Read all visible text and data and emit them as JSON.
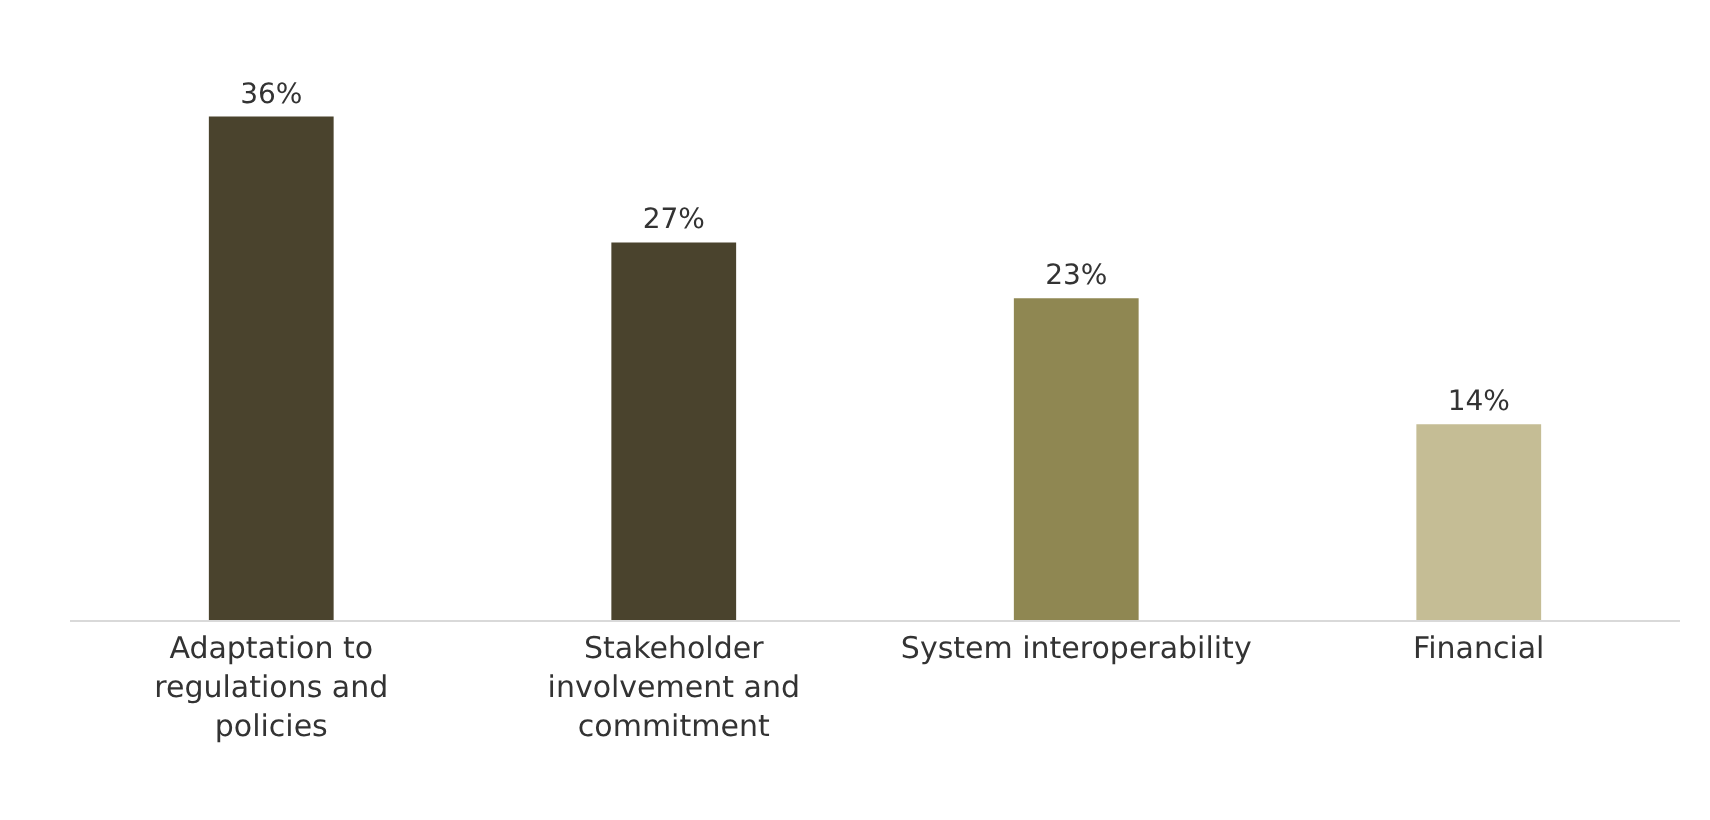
{
  "chart_data": {
    "type": "bar",
    "categories": [
      "Adaptation to regulations and policies",
      "Stakeholder involvement and commitment",
      "System interoperability",
      "Financial"
    ],
    "values": [
      36,
      27,
      23,
      14
    ],
    "colors": [
      "#4a432d",
      "#4a432d",
      "#8f8752",
      "#c5bd95"
    ],
    "value_labels": [
      "36%",
      "27%",
      "23%",
      "14%"
    ],
    "tick_labels": "x"
  }
}
